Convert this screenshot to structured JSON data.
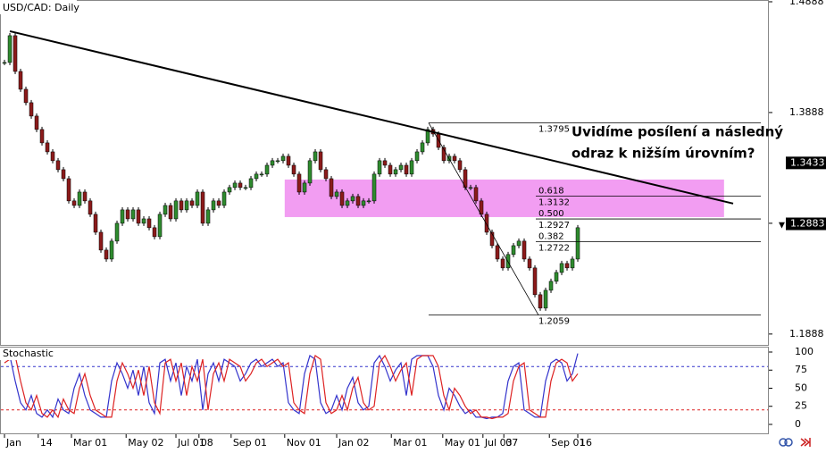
{
  "chart_data": [
    {
      "type": "candlestick",
      "title": "USD/CAD: Daily",
      "xlim": [
        -0.67,
        142.33
      ],
      "ylim": [
        1.179,
        1.4904
      ],
      "yticks": [
        1.4888,
        1.3888,
        1.2888,
        1.1888
      ],
      "up_color": "#2e8b2e",
      "down_color": "#8b1a1a",
      "series": [
        {
          "name": "USD/CAD",
          "values": [
            1.434,
            1.4582,
            1.4259,
            1.4098,
            1.3977,
            1.3856,
            1.3735,
            1.3614,
            1.3533,
            1.3453,
            1.3372,
            1.3291,
            1.309,
            1.3049,
            1.317,
            1.309,
            1.2969,
            1.2807,
            1.2646,
            1.2565,
            1.2727,
            1.2888,
            1.3009,
            1.2928,
            1.3009,
            1.2888,
            1.2928,
            1.2848,
            1.2767,
            1.2969,
            1.3049,
            1.2928,
            1.309,
            1.3009,
            1.309,
            1.3049,
            1.317,
            1.2888,
            1.3009,
            1.309,
            1.3049,
            1.317,
            1.3211,
            1.3251,
            1.3211,
            1.3211,
            1.3291,
            1.3332,
            1.3332,
            1.3412,
            1.3453,
            1.3453,
            1.3493,
            1.3412,
            1.3332,
            1.317,
            1.3251,
            1.3453,
            1.3533,
            1.3372,
            1.3291,
            1.313,
            1.317,
            1.3049,
            1.309,
            1.313,
            1.3049,
            1.309,
            1.309,
            1.3332,
            1.3453,
            1.3412,
            1.3332,
            1.3372,
            1.3412,
            1.3332,
            1.3453,
            1.3533,
            1.3614,
            1.3735,
            1.3694,
            1.3573,
            1.3453,
            1.3493,
            1.3453,
            1.3372,
            1.3211,
            1.3211,
            1.309,
            1.2969,
            1.2807,
            1.2686,
            1.2565,
            1.2485,
            1.2606,
            1.2686,
            1.2727,
            1.2565,
            1.2485,
            1.2243,
            1.2122,
            1.2283,
            1.2364,
            1.2444,
            1.2525,
            1.2485,
            1.2565,
            1.2848
          ]
        }
      ],
      "price_markers": [
        1.3433,
        1.2883
      ],
      "trendline": {
        "x": [
          1,
          136
        ],
        "y": [
          1.4622,
          1.3066
        ]
      },
      "zone": {
        "x": [
          52.3,
          134.3
        ],
        "top": 1.3283,
        "bottom": 1.2944,
        "color": "#f08cf0"
      },
      "fib_levels": [
        {
          "price": 1.3795
        },
        {
          "ratio": 0.618,
          "price": 1.3132
        },
        {
          "ratio": {
            "value": 0.5,
            "label": "0.500"
          },
          "price": 1.2927
        },
        {
          "ratio": 0.382,
          "price": 1.2722
        },
        {
          "price": 1.2059
        }
      ],
      "annotation": [
        "Uvidíme posílení a následný",
        "odraz k nižším úrovním?"
      ]
    },
    {
      "type": "line",
      "title": "Stochastic",
      "xlim": [
        -0.67,
        142.33
      ],
      "ylim": [
        -13.6,
        107.4
      ],
      "yticks": [
        0,
        25,
        50,
        75,
        100
      ],
      "levels": [
        {
          "value": 80,
          "color": "#3333cc"
        },
        {
          "value": 20,
          "color": "#dd2222"
        }
      ],
      "xticks": [
        {
          "value": 0,
          "label": "Jan"
        },
        {
          "value": 6.3,
          "label": "14"
        },
        {
          "value": 12.5,
          "label": "Mar 01"
        },
        {
          "value": 22.7,
          "label": "May 02"
        },
        {
          "value": 32,
          "label": "Jul 01"
        },
        {
          "value": 36.3,
          "label": "08"
        },
        {
          "value": 42.3,
          "label": "Sep 01"
        },
        {
          "value": 52.3,
          "label": "Nov 01"
        },
        {
          "value": 62,
          "label": "Jan 02"
        },
        {
          "value": 72.2,
          "label": "Mar 01"
        },
        {
          "value": 81.8,
          "label": "May 01"
        },
        {
          "value": 89.3,
          "label": "Jul 03"
        },
        {
          "value": 93.2,
          "label": "07"
        },
        {
          "value": 101.7,
          "label": "Sep 01"
        },
        {
          "value": 107,
          "label": "16"
        }
      ],
      "series": [
        {
          "name": "%K",
          "color": "#3333cc",
          "values": [
            90,
            95,
            60,
            30,
            20,
            40,
            15,
            10,
            20,
            10,
            35,
            20,
            15,
            50,
            70,
            40,
            20,
            15,
            10,
            10,
            60,
            85,
            70,
            50,
            75,
            40,
            80,
            30,
            15,
            85,
            90,
            60,
            85,
            40,
            80,
            60,
            90,
            20,
            70,
            85,
            60,
            90,
            85,
            80,
            60,
            70,
            85,
            90,
            80,
            85,
            90,
            80,
            85,
            30,
            20,
            15,
            70,
            95,
            90,
            30,
            15,
            20,
            40,
            20,
            50,
            65,
            30,
            20,
            25,
            85,
            95,
            80,
            60,
            75,
            85,
            40,
            90,
            95,
            95,
            95,
            80,
            40,
            20,
            50,
            40,
            25,
            15,
            20,
            10,
            10,
            8,
            10,
            10,
            15,
            60,
            80,
            85,
            20,
            15,
            10,
            10,
            60,
            85,
            90,
            85,
            60,
            70,
            98
          ]
        },
        {
          "name": "%D",
          "color": "#dd2222",
          "values": [
            85,
            90,
            95,
            60,
            30,
            20,
            40,
            15,
            10,
            20,
            10,
            35,
            20,
            15,
            50,
            70,
            40,
            20,
            15,
            10,
            10,
            60,
            85,
            70,
            50,
            75,
            40,
            80,
            30,
            15,
            85,
            90,
            60,
            85,
            40,
            80,
            60,
            90,
            20,
            70,
            85,
            60,
            90,
            85,
            80,
            60,
            70,
            85,
            90,
            80,
            85,
            90,
            80,
            85,
            30,
            20,
            15,
            70,
            95,
            90,
            30,
            15,
            20,
            40,
            20,
            50,
            65,
            30,
            20,
            25,
            85,
            95,
            80,
            60,
            75,
            85,
            40,
            90,
            95,
            95,
            95,
            80,
            40,
            20,
            50,
            40,
            25,
            15,
            20,
            10,
            10,
            8,
            10,
            10,
            15,
            60,
            80,
            85,
            20,
            15,
            10,
            10,
            60,
            85,
            90,
            85,
            60,
            70
          ]
        }
      ]
    }
  ]
}
